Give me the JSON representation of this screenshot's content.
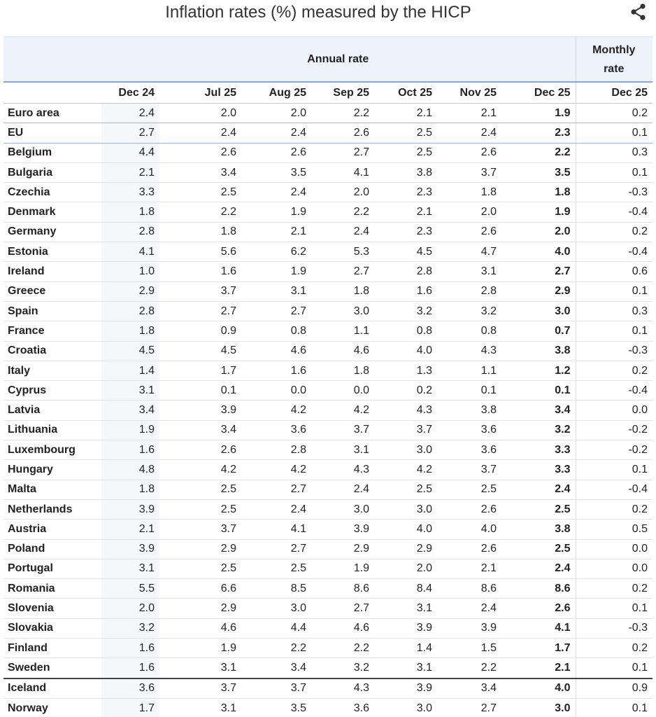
{
  "title": "Inflation rates (%) measured by the HICP",
  "table": {
    "groups": [
      "Annual rate",
      "Monthly rate"
    ],
    "columns": [
      "Dec 24",
      "Jul 25",
      "Aug 25",
      "Sep 25",
      "Oct 25",
      "Nov 25",
      "Dec 25",
      "Dec 25"
    ],
    "rows": [
      [
        "Euro area",
        "2.4",
        "2.0",
        "2.0",
        "2.2",
        "2.1",
        "2.1",
        "1.9",
        "0.2"
      ],
      [
        "EU",
        "2.7",
        "2.4",
        "2.4",
        "2.6",
        "2.5",
        "2.4",
        "2.3",
        "0.1"
      ],
      [
        "Belgium",
        "4.4",
        "2.6",
        "2.6",
        "2.7",
        "2.5",
        "2.6",
        "2.2",
        "0.3"
      ],
      [
        "Bulgaria",
        "2.1",
        "3.4",
        "3.5",
        "4.1",
        "3.8",
        "3.7",
        "3.5",
        "0.1"
      ],
      [
        "Czechia",
        "3.3",
        "2.5",
        "2.4",
        "2.0",
        "2.3",
        "1.8",
        "1.8",
        "-0.3"
      ],
      [
        "Denmark",
        "1.8",
        "2.2",
        "1.9",
        "2.2",
        "2.1",
        "2.0",
        "1.9",
        "-0.4"
      ],
      [
        "Germany",
        "2.8",
        "1.8",
        "2.1",
        "2.4",
        "2.3",
        "2.6",
        "2.0",
        "0.2"
      ],
      [
        "Estonia",
        "4.1",
        "5.6",
        "6.2",
        "5.3",
        "4.5",
        "4.7",
        "4.0",
        "-0.4"
      ],
      [
        "Ireland",
        "1.0",
        "1.6",
        "1.9",
        "2.7",
        "2.8",
        "3.1",
        "2.7",
        "0.6"
      ],
      [
        "Greece",
        "2.9",
        "3.7",
        "3.1",
        "1.8",
        "1.6",
        "2.8",
        "2.9",
        "0.1"
      ],
      [
        "Spain",
        "2.8",
        "2.7",
        "2.7",
        "3.0",
        "3.2",
        "3.2",
        "3.0",
        "0.3"
      ],
      [
        "France",
        "1.8",
        "0.9",
        "0.8",
        "1.1",
        "0.8",
        "0.8",
        "0.7",
        "0.1"
      ],
      [
        "Croatia",
        "4.5",
        "4.5",
        "4.6",
        "4.6",
        "4.0",
        "4.3",
        "3.8",
        "-0.3"
      ],
      [
        "Italy",
        "1.4",
        "1.7",
        "1.6",
        "1.8",
        "1.3",
        "1.1",
        "1.2",
        "0.2"
      ],
      [
        "Cyprus",
        "3.1",
        "0.1",
        "0.0",
        "0.0",
        "0.2",
        "0.1",
        "0.1",
        "-0.4"
      ],
      [
        "Latvia",
        "3.4",
        "3.9",
        "4.2",
        "4.2",
        "4.3",
        "3.8",
        "3.4",
        "0.0"
      ],
      [
        "Lithuania",
        "1.9",
        "3.4",
        "3.6",
        "3.7",
        "3.7",
        "3.6",
        "3.2",
        "-0.2"
      ],
      [
        "Luxembourg",
        "1.6",
        "2.6",
        "2.8",
        "3.1",
        "3.0",
        "3.6",
        "3.3",
        "-0.2"
      ],
      [
        "Hungary",
        "4.8",
        "4.2",
        "4.2",
        "4.3",
        "4.2",
        "3.7",
        "3.3",
        "0.1"
      ],
      [
        "Malta",
        "1.8",
        "2.5",
        "2.7",
        "2.4",
        "2.5",
        "2.5",
        "2.4",
        "-0.4"
      ],
      [
        "Netherlands",
        "3.9",
        "2.5",
        "2.4",
        "3.0",
        "3.0",
        "2.6",
        "2.5",
        "0.2"
      ],
      [
        "Austria",
        "2.1",
        "3.7",
        "4.1",
        "3.9",
        "4.0",
        "4.0",
        "3.8",
        "0.5"
      ],
      [
        "Poland",
        "3.9",
        "2.9",
        "2.7",
        "2.9",
        "2.9",
        "2.6",
        "2.5",
        "0.0"
      ],
      [
        "Portugal",
        "3.1",
        "2.5",
        "2.5",
        "1.9",
        "2.0",
        "2.1",
        "2.4",
        "0.0"
      ],
      [
        "Romania",
        "5.5",
        "6.6",
        "8.5",
        "8.6",
        "8.4",
        "8.6",
        "8.6",
        "0.2"
      ],
      [
        "Slovenia",
        "2.0",
        "2.9",
        "3.0",
        "2.7",
        "3.1",
        "2.4",
        "2.6",
        "0.1"
      ],
      [
        "Slovakia",
        "3.2",
        "4.6",
        "4.4",
        "4.6",
        "3.9",
        "3.9",
        "4.1",
        "-0.3"
      ],
      [
        "Finland",
        "1.6",
        "1.9",
        "2.2",
        "2.2",
        "1.4",
        "1.5",
        "1.7",
        "0.2"
      ],
      [
        "Sweden",
        "1.6",
        "3.1",
        "3.4",
        "3.2",
        "3.1",
        "2.2",
        "2.1",
        "0.1"
      ],
      [
        "Iceland",
        "3.6",
        "3.7",
        "3.7",
        "4.3",
        "3.9",
        "3.4",
        "4.0",
        "0.9"
      ],
      [
        "Norway",
        "1.7",
        "3.1",
        "3.5",
        "3.6",
        "3.0",
        "2.7",
        "3.0",
        "0.1"
      ]
    ]
  }
}
